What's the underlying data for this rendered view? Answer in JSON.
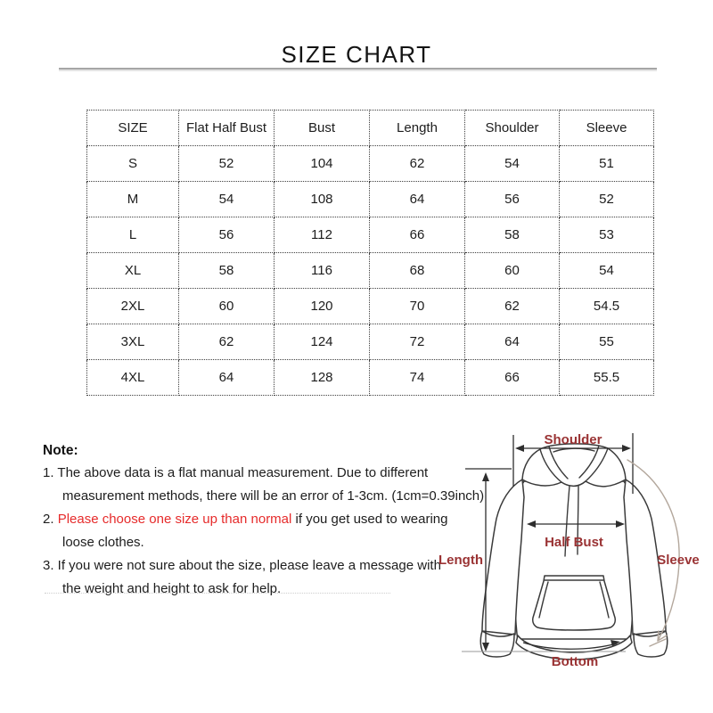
{
  "title": "SIZE CHART",
  "table": {
    "headers": [
      "SIZE",
      "Flat Half Bust",
      "Bust",
      "Length",
      "Shoulder",
      "Sleeve"
    ],
    "rows": [
      [
        "S",
        "52",
        "104",
        "62",
        "54",
        "51"
      ],
      [
        "M",
        "54",
        "108",
        "64",
        "56",
        "52"
      ],
      [
        "L",
        "56",
        "112",
        "66",
        "58",
        "53"
      ],
      [
        "XL",
        "58",
        "116",
        "68",
        "60",
        "54"
      ],
      [
        "2XL",
        "60",
        "120",
        "70",
        "62",
        "54.5"
      ],
      [
        "3XL",
        "62",
        "124",
        "72",
        "64",
        "55"
      ],
      [
        "4XL",
        "64",
        "128",
        "74",
        "66",
        "55.5"
      ]
    ]
  },
  "notes": {
    "heading": "Note:",
    "n1_line1": "1. The above data is a flat manual measurement. Due to different",
    "n1_line2": "measurement methods, there will be an error of 1-3cm. (1cm=0.39inch)",
    "n2_num": "2. ",
    "n2_red": "Please choose one size up than normal",
    "n2_rest": " if you get used to wearing",
    "n2_line2": "loose clothes.",
    "n3_line1": "3. If you were not sure about the size, please leave a message with",
    "n3_line2": "the weight and height to ask for help."
  },
  "diagram": {
    "shoulder_label": "Shoulder",
    "half_bust_label": "Half Bust",
    "length_label": "Length",
    "sleeve_label": "Sleeve",
    "bottom_label": "Bottom",
    "label_color": "#9a3334"
  },
  "colors": {
    "note_highlight": "#e62b2b",
    "text": "#1d1d1d",
    "title_rule": "#a6a6a6"
  }
}
